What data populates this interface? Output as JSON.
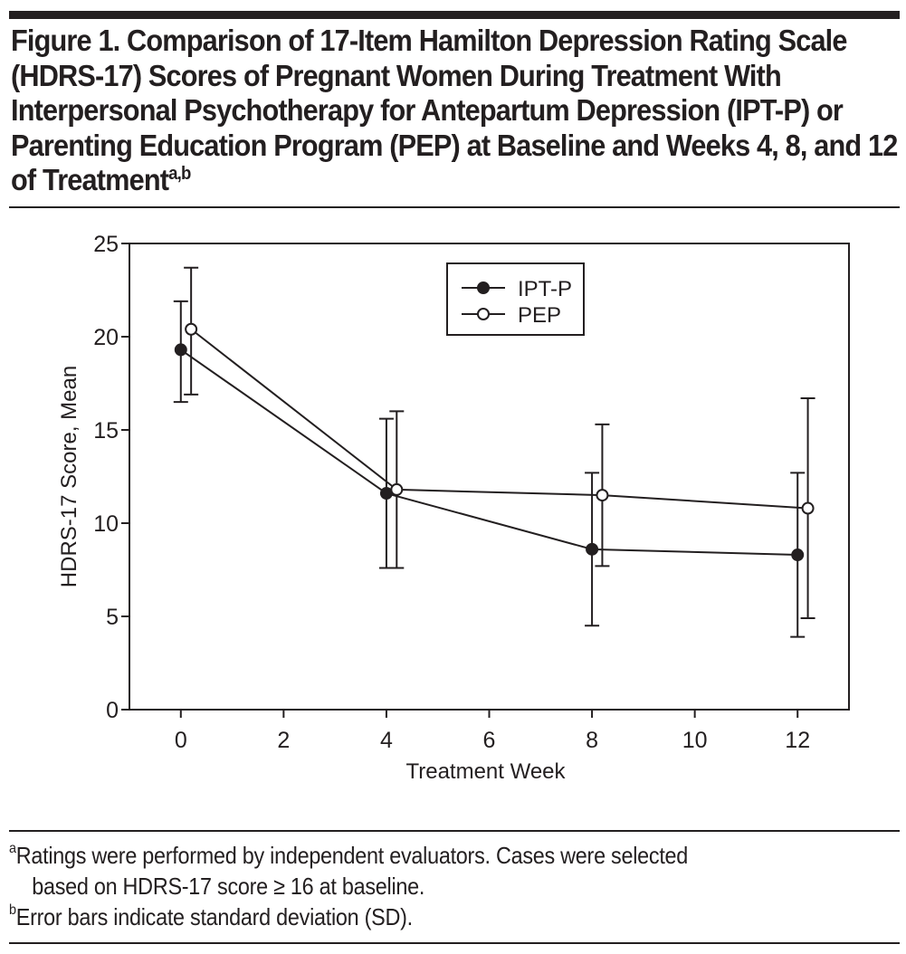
{
  "figure": {
    "title": "Figure 1. Comparison of 17-Item Hamilton Depression Rating Scale (HDRS-17) Scores of Pregnant Women During Treatment With Interpersonal Psychotherapy for Antepartum Depression (IPT-P) or Parenting Education Program (PEP) at Baseline and Weeks 4, 8, and 12 of Treatment",
    "title_superscript": "a,b",
    "footnotes": [
      {
        "marker": "a",
        "text": "Ratings were performed by independent evaluators. Cases were selected",
        "continuation": "based on HDRS-17 score ≥ 16 at baseline."
      },
      {
        "marker": "b",
        "text": "Error bars indicate standard deviation (SD)."
      }
    ]
  },
  "chart_data": {
    "type": "line",
    "title": "Figure 1. Comparison of 17-Item Hamilton Depression Rating Scale (HDRS-17) Scores of Pregnant Women During Treatment With IPT-P or PEP",
    "xlabel": "Treatment Week",
    "ylabel": "HDRS-17 Score, Mean",
    "xlim": [
      -1,
      13
    ],
    "ylim": [
      0,
      25
    ],
    "xticks": [
      0,
      2,
      4,
      6,
      8,
      10,
      12
    ],
    "yticks": [
      0,
      5,
      10,
      15,
      20,
      25
    ],
    "grid": false,
    "legend_position": "top-center",
    "error_bars": "SD",
    "x": [
      0,
      4,
      8,
      12
    ],
    "series": [
      {
        "name": "IPT-P",
        "marker": "filled-circle",
        "x_offset": 0,
        "values": [
          19.3,
          11.6,
          8.6,
          8.3
        ],
        "upper": [
          21.9,
          15.6,
          12.7,
          12.7
        ],
        "lower": [
          16.5,
          7.6,
          4.5,
          3.9
        ]
      },
      {
        "name": "PEP",
        "marker": "open-circle",
        "x_offset": 0.2,
        "values": [
          20.4,
          11.8,
          11.5,
          10.8
        ],
        "upper": [
          23.7,
          16.0,
          15.3,
          16.7
        ],
        "lower": [
          16.9,
          7.6,
          7.7,
          4.9
        ]
      }
    ]
  }
}
